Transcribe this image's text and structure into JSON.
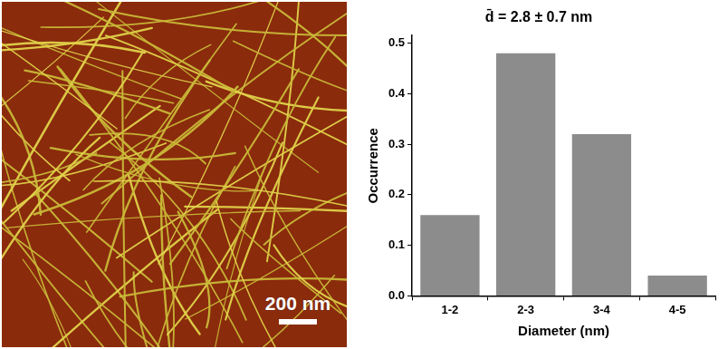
{
  "chart_data": {
    "type": "bar",
    "title": "d̄ = 2.8 ± 0.7 nm",
    "x_label": "Diameter (nm)",
    "y_label": "Occurrence",
    "categories": [
      "1-2",
      "2-3",
      "3-4",
      "4-5"
    ],
    "values": [
      0.16,
      0.48,
      0.32,
      0.04
    ],
    "color": "#8c8c8c",
    "ylim": [
      0,
      0.515
    ],
    "yticks": [
      {
        "value": 0,
        "label": "0.0"
      },
      0.1,
      0.2,
      0.3,
      0.4,
      0.5
    ],
    "grid": false
  },
  "image": {
    "scale_bar": "200 nm"
  }
}
